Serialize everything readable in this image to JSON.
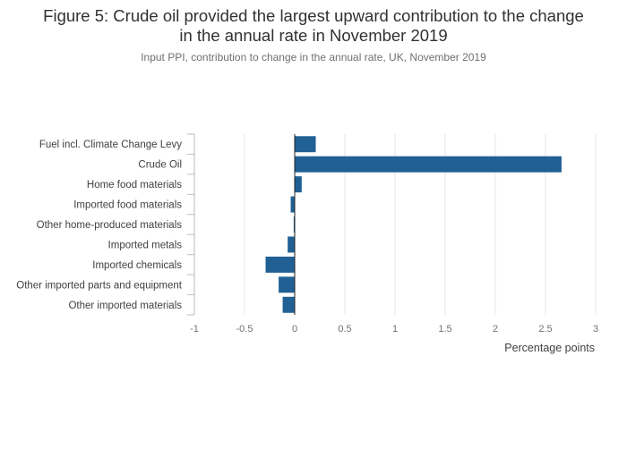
{
  "title_line1": "Figure 5: Crude oil provided the largest upward contribution to the change",
  "title_line2": "in the annual rate in November 2019",
  "subtitle": "Input PPI, contribution to change in the annual rate, UK, November 2019",
  "colors": {
    "bar": "#206095",
    "grid": "#e6e6e6",
    "zero_line": "#222222",
    "axis": "#bebebe"
  },
  "chart_data": {
    "type": "bar",
    "orientation": "horizontal",
    "categories": [
      "Fuel incl. Climate Change Levy",
      "Crude Oil",
      "Home food materials",
      "Imported food materials",
      "Other home-produced materials",
      "Imported metals",
      "Imported chemicals",
      "Other imported parts and equipment",
      "Other imported materials"
    ],
    "values": [
      0.21,
      2.66,
      0.07,
      -0.04,
      -0.01,
      -0.07,
      -0.29,
      -0.16,
      -0.12
    ],
    "xlabel": "Percentage points",
    "xlim": [
      -1,
      3
    ],
    "xticks": [
      -1,
      -0.5,
      0,
      0.5,
      1,
      1.5,
      2,
      2.5,
      3
    ],
    "xtick_labels": [
      "-1",
      "-0.5",
      "0",
      "0.5",
      "1",
      "1.5",
      "2",
      "2.5",
      "3"
    ],
    "grid": true,
    "legend": "none"
  }
}
